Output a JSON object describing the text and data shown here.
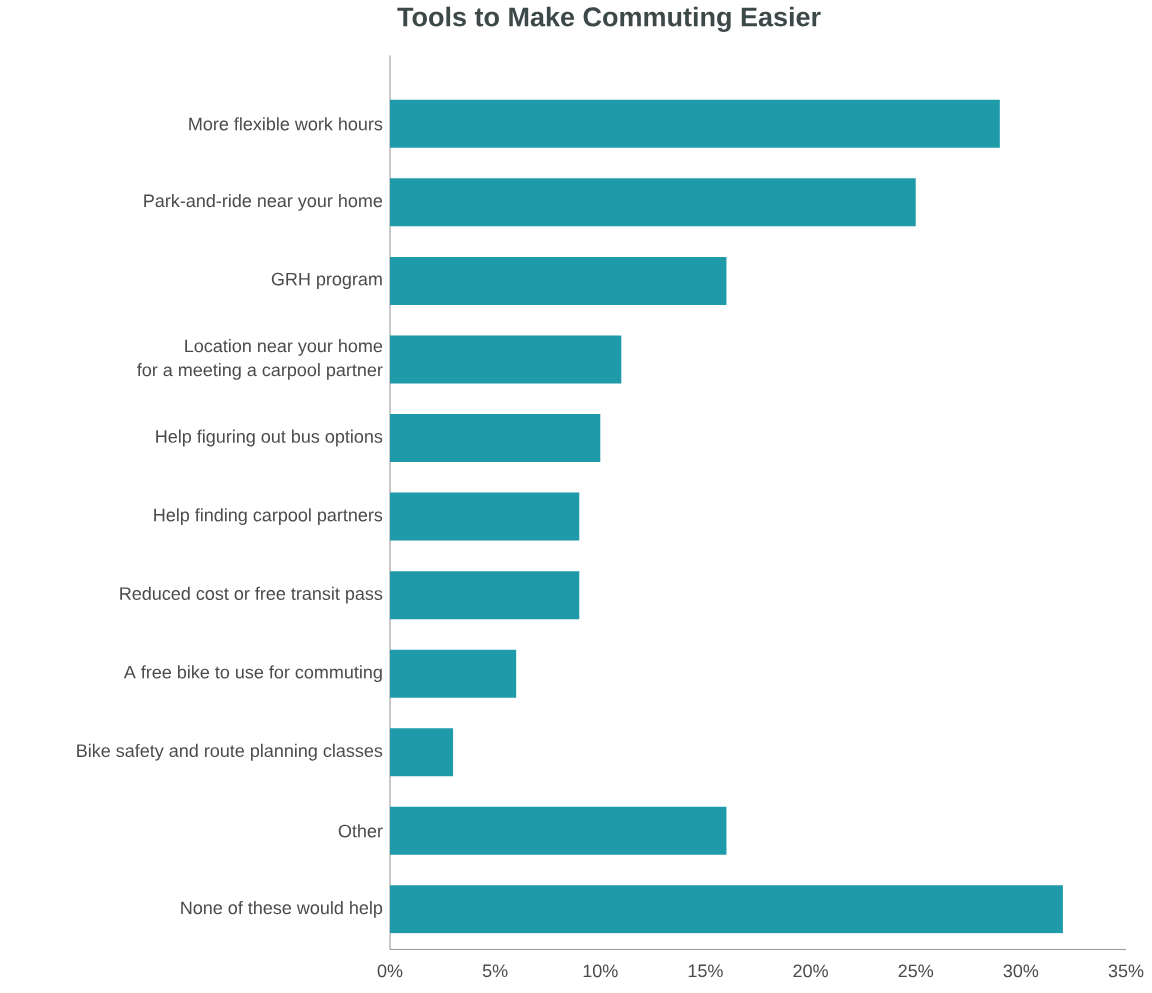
{
  "chart_data": {
    "type": "bar",
    "orientation": "horizontal",
    "title": "Tools to Make Commuting Easier",
    "categories": [
      "More flexible work hours",
      "Park-and-ride near your home",
      "GRH program",
      "Location near your home\nfor a meeting a carpool partner",
      "Help figuring out bus options",
      "Help finding carpool partners",
      "Reduced cost or free transit pass",
      "A free bike to use for commuting",
      "Bike safety and route planning classes",
      "Other",
      "None of these would help"
    ],
    "values": [
      29,
      25,
      16,
      11,
      10,
      9,
      9,
      6,
      3,
      16,
      32
    ],
    "color": "#1f9aa8",
    "xlim": [
      0,
      35
    ],
    "xticks": [
      {
        "value": 0,
        "label": "0%"
      },
      {
        "value": 5,
        "label": "5%"
      },
      {
        "value": 10,
        "label": "10%"
      },
      {
        "value": 15,
        "label": "15%"
      },
      {
        "value": 20,
        "label": "20%"
      },
      {
        "value": 25,
        "label": "25%"
      },
      {
        "value": 30,
        "label": "30%"
      },
      {
        "value": 35,
        "label": "35%"
      }
    ],
    "grid": false
  }
}
